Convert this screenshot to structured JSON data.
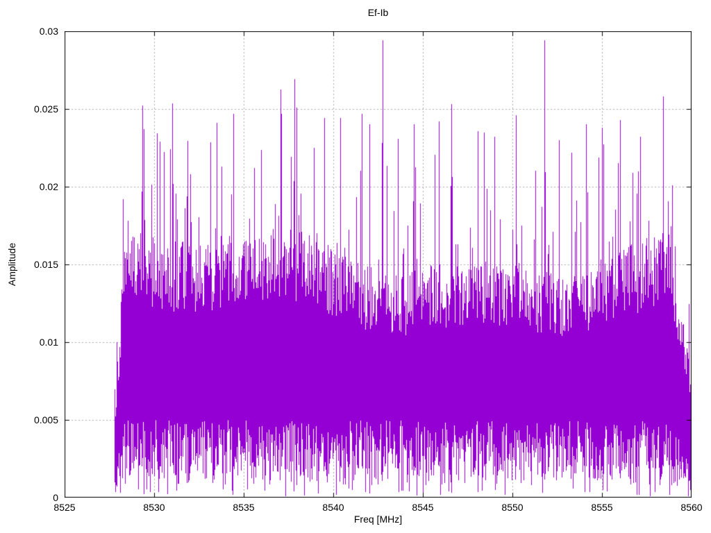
{
  "page": {
    "background": "#ffffff"
  },
  "chart_data": {
    "type": "line",
    "title": "Ef-Ib",
    "xlabel": "Freq [MHz]",
    "ylabel": "Amplitude",
    "xlim": [
      8525,
      8560
    ],
    "ylim": [
      0,
      0.03
    ],
    "xticks": [
      {
        "v": 8525,
        "label": "8525"
      },
      {
        "v": 8530,
        "label": "8530"
      },
      {
        "v": 8535,
        "label": "8535"
      },
      {
        "v": 8540,
        "label": "8540"
      },
      {
        "v": 8545,
        "label": "8545"
      },
      {
        "v": 8550,
        "label": "8550"
      },
      {
        "v": 8555,
        "label": "8555"
      },
      {
        "v": 8560,
        "label": "8560"
      }
    ],
    "yticks": [
      {
        "v": 0,
        "label": "0"
      },
      {
        "v": 0.005,
        "label": "0.005"
      },
      {
        "v": 0.01,
        "label": "0.01"
      },
      {
        "v": 0.015,
        "label": "0.015"
      },
      {
        "v": 0.02,
        "label": "0.02"
      },
      {
        "v": 0.025,
        "label": "0.025"
      },
      {
        "v": 0.03,
        "label": "0.03"
      }
    ],
    "grid": "dotted",
    "grid_color": "#a8a8a8",
    "border_color": "#000000",
    "line_color": "#9400D3",
    "legend": "none",
    "band": {
      "start_mhz": 8527.8,
      "end_mhz": 8560.0
    },
    "noise_model": {
      "seed": 20137,
      "base_top_min": 0.0115,
      "base_top_span": 0.0045,
      "base_bottom_min": 0.0008,
      "base_bottom_span": 0.0042,
      "spike_probability": 0.22,
      "spike_tail_max": 0.0105,
      "deep_dip_probability": 0.06,
      "max_amplitude": 0.0295,
      "left_edge_ramp_mhz": 0.55,
      "right_edge_ramp_mhz": 1.3
    },
    "peaks": [
      {
        "freq": 8529.3,
        "amp": 0.0197
      },
      {
        "freq": 8530.3,
        "amp": 0.0229
      },
      {
        "freq": 8530.9,
        "amp": 0.0224
      },
      {
        "freq": 8532.0,
        "amp": 0.0208
      },
      {
        "freq": 8533.5,
        "amp": 0.0241
      },
      {
        "freq": 8534.4,
        "amp": 0.0247
      },
      {
        "freq": 8535.6,
        "amp": 0.0212
      },
      {
        "freq": 8537.1,
        "amp": 0.0247
      },
      {
        "freq": 8538.9,
        "amp": 0.0225
      },
      {
        "freq": 8539.5,
        "amp": 0.0244
      },
      {
        "freq": 8540.4,
        "amp": 0.0244
      },
      {
        "freq": 8541.6,
        "amp": 0.0247
      },
      {
        "freq": 8542.0,
        "amp": 0.024
      },
      {
        "freq": 8542.75,
        "amp": 0.0294
      },
      {
        "freq": 8543.6,
        "amp": 0.0231
      },
      {
        "freq": 8544.5,
        "amp": 0.024
      },
      {
        "freq": 8545.9,
        "amp": 0.0242
      },
      {
        "freq": 8546.6,
        "amp": 0.0253
      },
      {
        "freq": 8548.4,
        "amp": 0.0235
      },
      {
        "freq": 8549.0,
        "amp": 0.0232
      },
      {
        "freq": 8550.2,
        "amp": 0.0246
      },
      {
        "freq": 8551.77,
        "amp": 0.0294
      },
      {
        "freq": 8552.6,
        "amp": 0.023
      },
      {
        "freq": 8553.3,
        "amp": 0.0222
      },
      {
        "freq": 8554.1,
        "amp": 0.024
      },
      {
        "freq": 8555.0,
        "amp": 0.0238
      },
      {
        "freq": 8555.9,
        "amp": 0.0215
      },
      {
        "freq": 8557.0,
        "amp": 0.021
      },
      {
        "freq": 8558.4,
        "amp": 0.0258
      },
      {
        "freq": 8558.9,
        "amp": 0.0201
      }
    ]
  }
}
